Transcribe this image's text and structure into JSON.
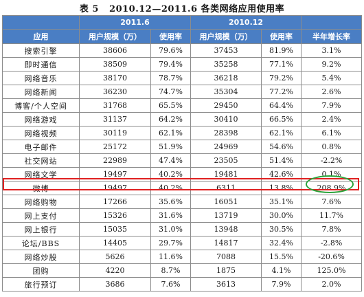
{
  "title": "表 5   2010.12—2011.6 各类网络应用使用率",
  "periods": [
    "2011.6",
    "2010.12"
  ],
  "columns": {
    "app": "应用",
    "users_2011_6": "用户规模（万）",
    "rate_2011_6": "使用率",
    "users_2010_12": "用户规模（万）",
    "rate_2010_12": "使用率",
    "growth": "半年增长率"
  },
  "rows": [
    {
      "app": "搜索引擎",
      "u1": "38606",
      "r1": "79.6%",
      "u2": "37453",
      "r2": "81.9%",
      "g": "3.1%"
    },
    {
      "app": "即时通信",
      "u1": "38509",
      "r1": "79.4%",
      "u2": "35258",
      "r2": "77.1%",
      "g": "9.2%"
    },
    {
      "app": "网络音乐",
      "u1": "38170",
      "r1": "78.7%",
      "u2": "36218",
      "r2": "79.2%",
      "g": "5.4%"
    },
    {
      "app": "网络新闻",
      "u1": "36230",
      "r1": "74.7%",
      "u2": "35304",
      "r2": "77.2%",
      "g": "2.6%"
    },
    {
      "app": "博客/个人空间",
      "u1": "31768",
      "r1": "65.5%",
      "u2": "29450",
      "r2": "64.4%",
      "g": "7.9%"
    },
    {
      "app": "网络游戏",
      "u1": "31137",
      "r1": "64.2%",
      "u2": "30410",
      "r2": "66.5%",
      "g": "2.4%"
    },
    {
      "app": "网络视频",
      "u1": "30119",
      "r1": "62.1%",
      "u2": "28398",
      "r2": "62.1%",
      "g": "6.1%"
    },
    {
      "app": "电子邮件",
      "u1": "25172",
      "r1": "51.9%",
      "u2": "24969",
      "r2": "54.6%",
      "g": "0.8%"
    },
    {
      "app": "社交网站",
      "u1": "22989",
      "r1": "47.4%",
      "u2": "23505",
      "r2": "51.4%",
      "g": "-2.2%"
    },
    {
      "app": "网络文学",
      "u1": "19497",
      "r1": "40.2%",
      "u2": "19481",
      "r2": "42.6%",
      "g": "0.1%"
    },
    {
      "app": "微博",
      "u1": "19497",
      "r1": "40.2%",
      "u2": "6311",
      "r2": "13.8%",
      "g": "208.9%"
    },
    {
      "app": "网络购物",
      "u1": "17266",
      "r1": "35.6%",
      "u2": "16051",
      "r2": "35.1%",
      "g": "7.6%"
    },
    {
      "app": "网上支付",
      "u1": "15326",
      "r1": "31.6%",
      "u2": "13719",
      "r2": "30.0%",
      "g": "11.7%"
    },
    {
      "app": "网上银行",
      "u1": "15035",
      "r1": "31.0%",
      "u2": "13948",
      "r2": "30.5%",
      "g": "7.8%"
    },
    {
      "app": "论坛/BBS",
      "u1": "14405",
      "r1": "29.7%",
      "u2": "14817",
      "r2": "32.4%",
      "g": "-2.8%"
    },
    {
      "app": "网络炒股",
      "u1": "5626",
      "r1": "11.6%",
      "u2": "7088",
      "r2": "15.5%",
      "g": "-20.6%"
    },
    {
      "app": "团购",
      "u1": "4220",
      "r1": "8.7%",
      "u2": "1875",
      "r2": "4.1%",
      "g": "125.0%"
    },
    {
      "app": "旅行预订",
      "u1": "3686",
      "r1": "7.6%",
      "u2": "3613",
      "r2": "7.9%",
      "g": "2.0%"
    }
  ],
  "colors": {
    "header_bg": "#4a7ec4",
    "highlight_row_border": "#e02020",
    "highlight_ellipse": "#2aa33a"
  }
}
